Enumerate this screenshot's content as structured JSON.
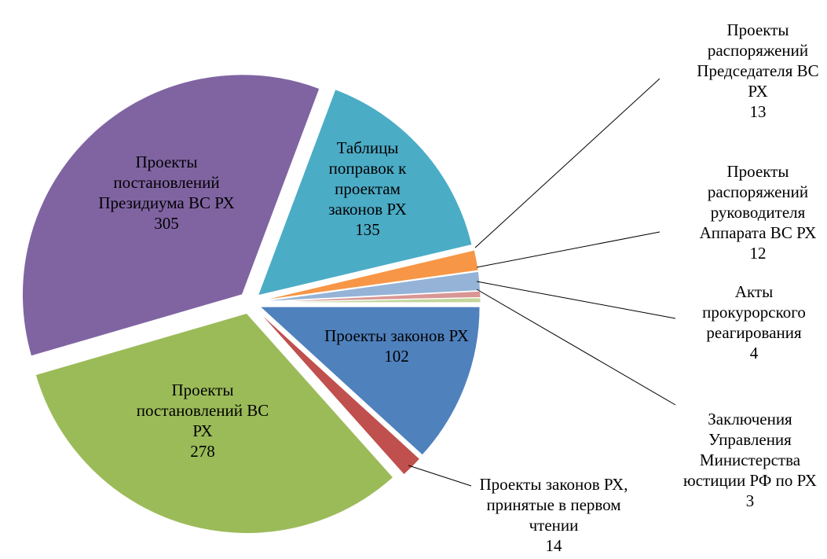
{
  "chart_data": {
    "type": "pie",
    "categories": [
      "Проекты законов РХ",
      "Проекты законов РХ, принятые в первом чтении",
      "Проекты постановлений ВС РХ",
      "Проекты постановлений Президиума ВС РХ",
      "Таблицы поправок к проектам законов РХ",
      "Проекты распоряжений Председателя ВС РХ",
      "Проекты распоряжений руководителя Аппарата ВС РХ",
      "Акты прокурорского реагирования",
      "Заключения Управления Министерства юстиции РФ по РХ"
    ],
    "values": [
      102,
      14,
      278,
      305,
      135,
      13,
      12,
      4,
      3
    ],
    "colors": [
      "#4f81bd",
      "#c0504d",
      "#9bbb59",
      "#8064a2",
      "#4bacc6",
      "#f79646",
      "#95b3d7",
      "#d99694",
      "#c3d69b"
    ]
  }
}
